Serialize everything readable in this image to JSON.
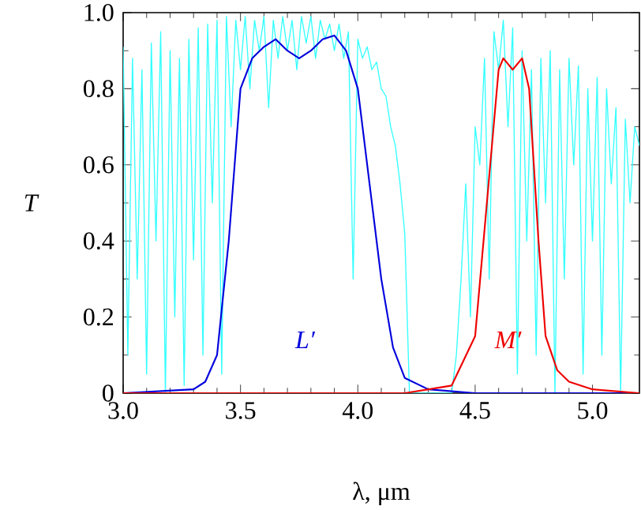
{
  "chart_data": {
    "type": "line",
    "xlabel": "λ, μm",
    "ylabel": "T",
    "xlim": [
      3.0,
      5.2
    ],
    "ylim": [
      0,
      1.0
    ],
    "xticks": [
      {
        "value": 3.0,
        "label": "3.0"
      },
      3.5,
      {
        "value": 4.0,
        "label": "4.0"
      },
      4.5,
      {
        "value": 5.0,
        "label": "5.0"
      }
    ],
    "yticks": [
      0,
      0.2,
      0.4,
      0.6,
      0.8,
      {
        "value": 1.0,
        "label": "1.0"
      }
    ],
    "grid": false,
    "legend": false,
    "marker": "none",
    "line_style": "solid",
    "series": [
      {
        "color": "#33ffff",
        "x": [
          3.0,
          3.02,
          3.04,
          3.06,
          3.08,
          3.1,
          3.12,
          3.14,
          3.16,
          3.18,
          3.2,
          3.22,
          3.24,
          3.26,
          3.28,
          3.3,
          3.32,
          3.34,
          3.36,
          3.38,
          3.4,
          3.42,
          3.44,
          3.46,
          3.48,
          3.5,
          3.52,
          3.54,
          3.56,
          3.58,
          3.6,
          3.62,
          3.64,
          3.66,
          3.68,
          3.7,
          3.72,
          3.74,
          3.76,
          3.78,
          3.8,
          3.82,
          3.84,
          3.86,
          3.88,
          3.9,
          3.92,
          3.94,
          3.96,
          3.98,
          4.0,
          4.02,
          4.04,
          4.06,
          4.08,
          4.1,
          4.12,
          4.14,
          4.16,
          4.18,
          4.2,
          4.22,
          4.4,
          4.42,
          4.44,
          4.46,
          4.48,
          4.5,
          4.52,
          4.54,
          4.56,
          4.58,
          4.6,
          4.62,
          4.64,
          4.66,
          4.68,
          4.7,
          4.72,
          4.74,
          4.76,
          4.78,
          4.8,
          4.82,
          4.84,
          4.86,
          4.88,
          4.9,
          4.92,
          4.94,
          4.96,
          4.98,
          5.0,
          5.02,
          5.04,
          5.06,
          5.08,
          5.1,
          5.12,
          5.14,
          5.16,
          5.18,
          5.2
        ],
        "values": [
          0.91,
          0.1,
          0.88,
          0.3,
          0.85,
          0.05,
          0.92,
          0.4,
          0.95,
          0.0,
          0.9,
          0.2,
          0.88,
          0.02,
          0.93,
          0.35,
          0.96,
          0.1,
          0.97,
          0.5,
          0.98,
          0.05,
          0.99,
          0.7,
          0.98,
          0.85,
          0.99,
          0.8,
          0.98,
          0.9,
          0.99,
          0.75,
          0.98,
          0.88,
          0.99,
          0.9,
          0.98,
          0.85,
          0.99,
          0.92,
          0.99,
          0.88,
          0.98,
          0.93,
          0.97,
          0.9,
          0.97,
          0.88,
          0.95,
          0.3,
          0.93,
          0.88,
          0.91,
          0.85,
          0.87,
          0.8,
          0.78,
          0.7,
          0.65,
          0.55,
          0.42,
          0.0,
          0.0,
          0.1,
          0.3,
          0.55,
          0.2,
          0.7,
          0.6,
          0.88,
          0.3,
          0.95,
          0.85,
          0.98,
          0.7,
          0.96,
          0.05,
          0.9,
          0.4,
          0.85,
          0.1,
          0.88,
          0.5,
          0.9,
          0.0,
          0.85,
          0.3,
          0.88,
          0.6,
          0.86,
          0.05,
          0.8,
          0.4,
          0.83,
          0.1,
          0.8,
          0.55,
          0.75,
          0.0,
          0.72,
          0.5,
          0.7,
          0.65
        ]
      },
      {
        "name": "L′",
        "color": "#0000dd",
        "x": [
          3.0,
          3.3,
          3.35,
          3.4,
          3.45,
          3.5,
          3.55,
          3.6,
          3.65,
          3.7,
          3.75,
          3.8,
          3.85,
          3.9,
          3.95,
          4.0,
          4.05,
          4.1,
          4.15,
          4.2,
          4.3,
          4.5,
          5.2
        ],
        "values": [
          0,
          0.01,
          0.03,
          0.1,
          0.4,
          0.8,
          0.88,
          0.91,
          0.93,
          0.9,
          0.88,
          0.9,
          0.93,
          0.94,
          0.9,
          0.8,
          0.55,
          0.3,
          0.12,
          0.04,
          0.01,
          0,
          0
        ]
      },
      {
        "name": "M′",
        "color": "#ee0000",
        "x": [
          3.0,
          4.2,
          4.4,
          4.5,
          4.55,
          4.6,
          4.62,
          4.66,
          4.7,
          4.73,
          4.77,
          4.8,
          4.85,
          4.9,
          5.0,
          5.2
        ],
        "values": [
          0,
          0,
          0.02,
          0.15,
          0.5,
          0.85,
          0.88,
          0.85,
          0.88,
          0.8,
          0.4,
          0.15,
          0.06,
          0.03,
          0.01,
          0
        ]
      }
    ]
  }
}
